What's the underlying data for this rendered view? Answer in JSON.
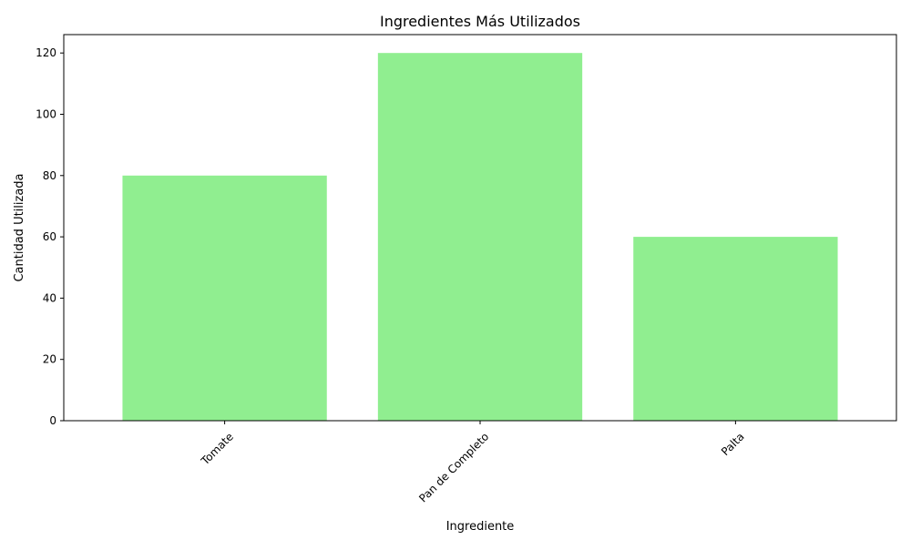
{
  "chart_data": {
    "type": "bar",
    "title": "Ingredientes Más Utilizados",
    "xlabel": "Ingrediente",
    "ylabel": "Cantidad Utilizada",
    "categories": [
      "Tomate",
      "Pan de Completo",
      "Palta"
    ],
    "values": [
      80,
      120,
      60
    ],
    "ylim": [
      0,
      126
    ],
    "yticks": [
      0,
      20,
      40,
      60,
      80,
      100,
      120
    ],
    "grid": false,
    "legend": "none",
    "bar_color": "#90ee90",
    "x_tick_rotation": 45
  }
}
